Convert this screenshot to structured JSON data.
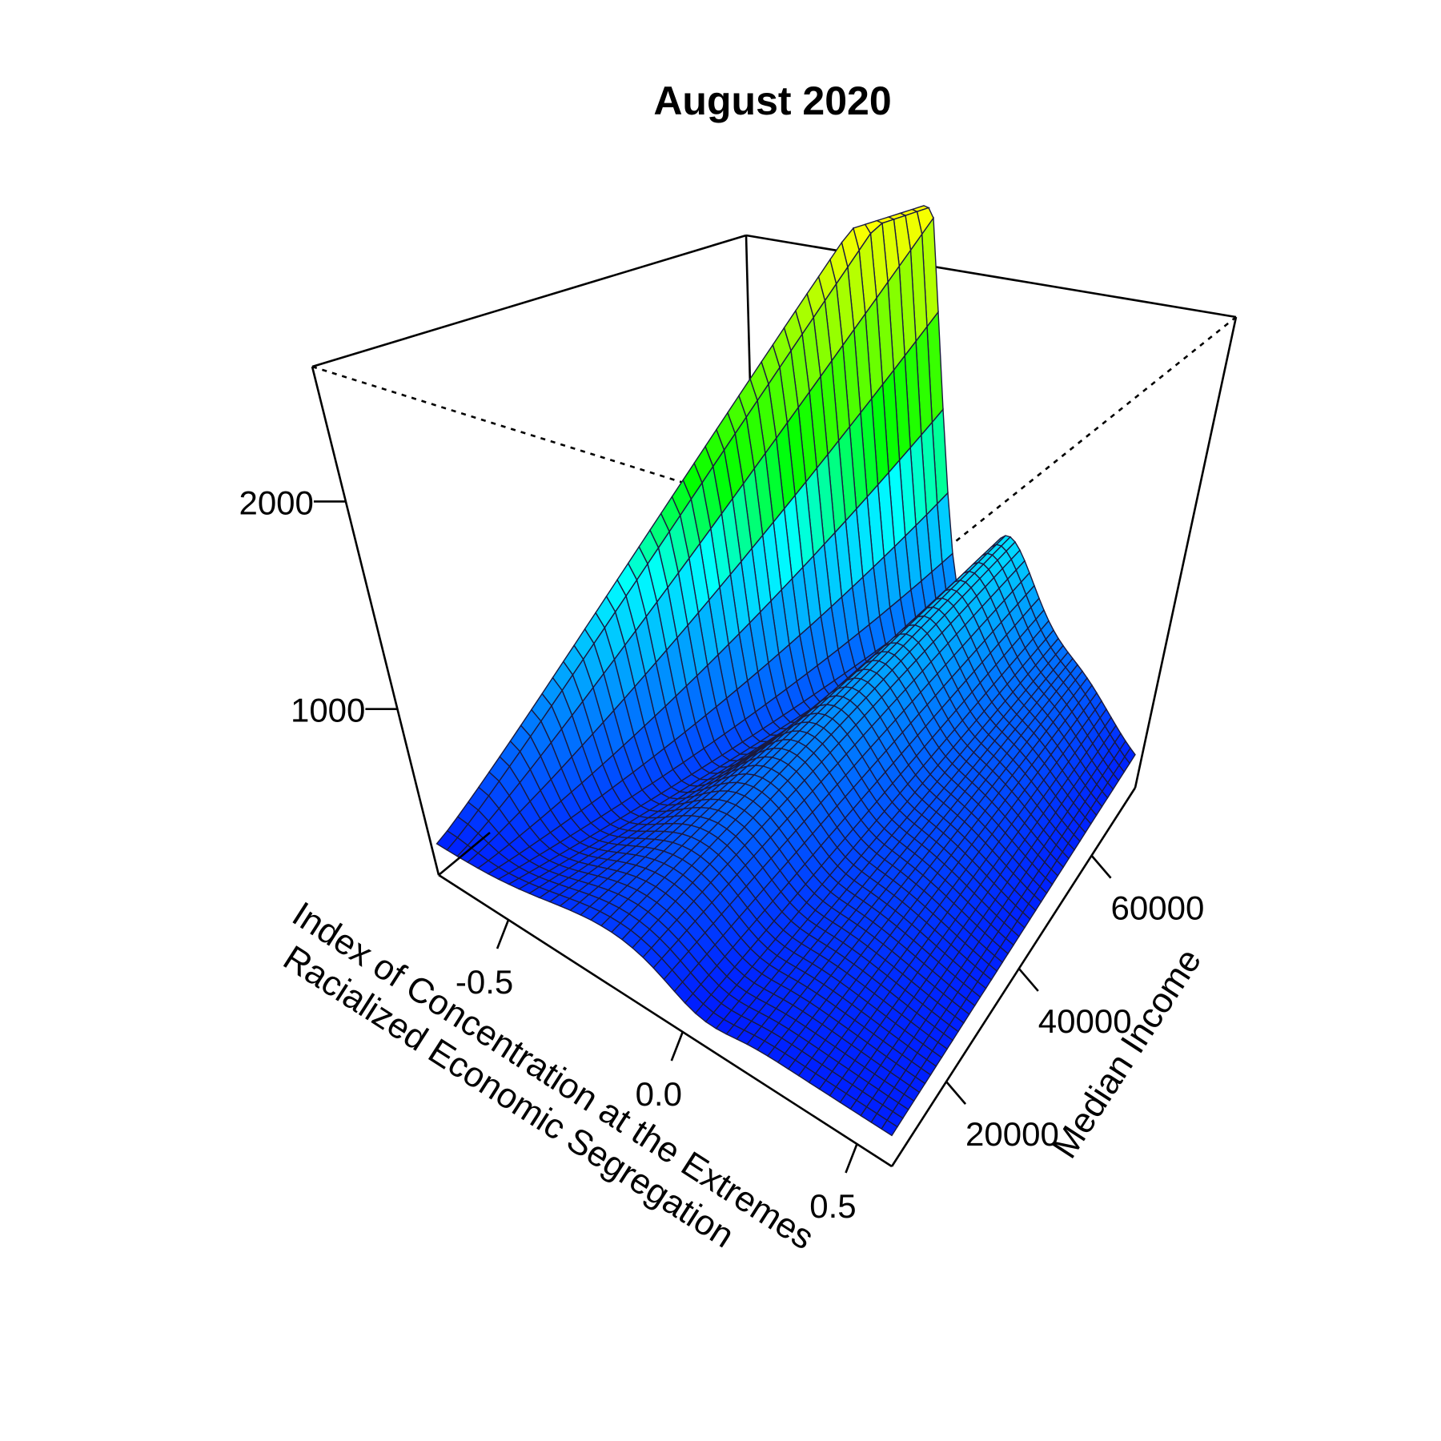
{
  "chart_data": {
    "type": "surface3d",
    "title": "August 2020",
    "xlabel": [
      "Index of Concentration at the Extremes",
      "Racialized Economic Segregation"
    ],
    "ylabel": "Median Income",
    "zlabel": "",
    "xlim": [
      -0.7,
      0.6
    ],
    "ylim": [
      5000,
      72000
    ],
    "zlim": [
      200,
      2650
    ],
    "x_ticks": [
      {
        "value": -0.5,
        "label": "-0.5"
      },
      {
        "value": 0.0,
        "label": "0.0"
      },
      {
        "value": 0.5,
        "label": "0.5"
      }
    ],
    "y_ticks": [
      {
        "value": 20000,
        "label": "20000"
      },
      {
        "value": 40000,
        "label": "40000"
      },
      {
        "value": 60000,
        "label": "60000"
      }
    ],
    "z_ticks": [
      {
        "value": 1000,
        "label": "1000"
      },
      {
        "value": 2000,
        "label": "2000"
      }
    ],
    "color_scale": [
      "#0000ff",
      "#0080ff",
      "#00ffff",
      "#00ff00",
      "#ffff00"
    ],
    "grid_lines": false,
    "legend": "none",
    "surface_profiles": {
      "along_income_at_low_ice": {
        "y": [
          5000,
          15000,
          25000,
          40000,
          55000,
          72000
        ],
        "z": [
          330,
          460,
          700,
          1250,
          1900,
          2650
        ]
      },
      "along_ice_at_low_income": {
        "x": [
          -0.7,
          -0.4,
          0.0,
          0.3,
          0.6
        ],
        "z": [
          330,
          340,
          450,
          380,
          320
        ]
      },
      "along_ice_at_high_income": {
        "x": [
          -0.7,
          -0.5,
          -0.3,
          0.0,
          0.6
        ],
        "z": [
          2650,
          900,
          1180,
          1050,
          580
        ]
      }
    }
  }
}
